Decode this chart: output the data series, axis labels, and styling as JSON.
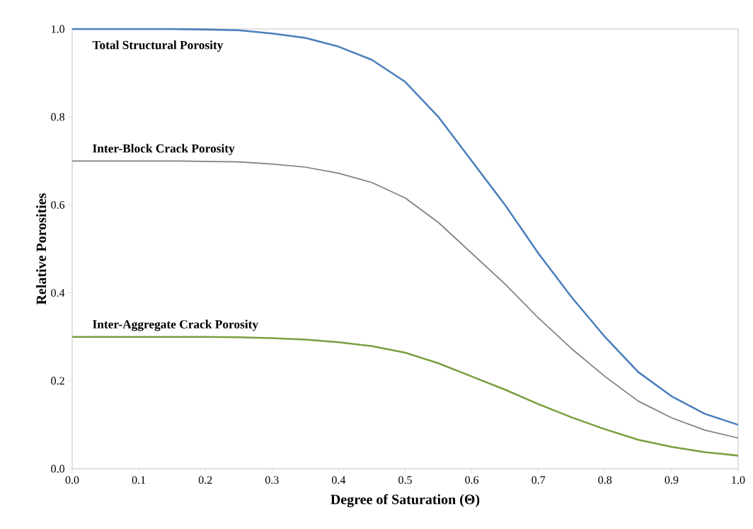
{
  "chart_data": {
    "type": "line",
    "xlabel": "Degree of Saturation (Θ)",
    "ylabel": "Relative Porosities",
    "x": [
      0,
      0.05,
      0.1,
      0.15,
      0.2,
      0.25,
      0.3,
      0.35,
      0.4,
      0.45,
      0.5,
      0.55,
      0.6,
      0.65,
      0.7,
      0.75,
      0.8,
      0.85,
      0.9,
      0.95,
      1.0
    ],
    "series": [
      {
        "name": "Total Structural Porosity",
        "color": "#4a7ebb",
        "values": [
          1.0,
          1.0,
          1.0,
          1.0,
          0.999,
          0.997,
          0.99,
          0.98,
          0.96,
          0.93,
          0.88,
          0.8,
          0.7,
          0.6,
          0.49,
          0.39,
          0.3,
          0.22,
          0.165,
          0.125,
          0.1
        ]
      },
      {
        "name": "Inter-Block Crack Porosity",
        "color": "#7f7f7f",
        "values": [
          0.7,
          0.7,
          0.7,
          0.7,
          0.699,
          0.698,
          0.693,
          0.686,
          0.672,
          0.651,
          0.616,
          0.56,
          0.49,
          0.42,
          0.343,
          0.273,
          0.21,
          0.154,
          0.116,
          0.088,
          0.07
        ]
      },
      {
        "name": "Inter-Aggregate Crack Porosity",
        "color": "#77a03f",
        "values": [
          0.3,
          0.3,
          0.3,
          0.3,
          0.3,
          0.299,
          0.297,
          0.294,
          0.288,
          0.279,
          0.264,
          0.24,
          0.21,
          0.18,
          0.147,
          0.117,
          0.09,
          0.066,
          0.05,
          0.038,
          0.03
        ]
      }
    ],
    "xlim": [
      0,
      1
    ],
    "ylim": [
      0,
      1
    ],
    "xticks": [
      {
        "value": 0,
        "label": "0.0"
      },
      {
        "value": 0.1,
        "label": "0.1"
      },
      {
        "value": 0.2,
        "label": "0.2"
      },
      {
        "value": 0.3,
        "label": "0.3"
      },
      {
        "value": 0.4,
        "label": "0.4"
      },
      {
        "value": 0.5,
        "label": "0.5"
      },
      {
        "value": 0.6,
        "label": "0.6"
      },
      {
        "value": 0.7,
        "label": "0.7"
      },
      {
        "value": 0.8,
        "label": "0.8"
      },
      {
        "value": 0.9,
        "label": "0.9"
      },
      {
        "value": 1.0,
        "label": "1.0"
      }
    ],
    "yticks": [
      {
        "value": 0,
        "label": "0.0"
      },
      {
        "value": 0.2,
        "label": "0.2"
      },
      {
        "value": 0.4,
        "label": "0.4"
      },
      {
        "value": 0.6,
        "label": "0.6"
      },
      {
        "value": 0.8,
        "label": "0.8"
      },
      {
        "value": 1.0,
        "label": "1.0"
      }
    ],
    "grid": false,
    "legend": false,
    "marker": "none",
    "line_style": "solid"
  }
}
